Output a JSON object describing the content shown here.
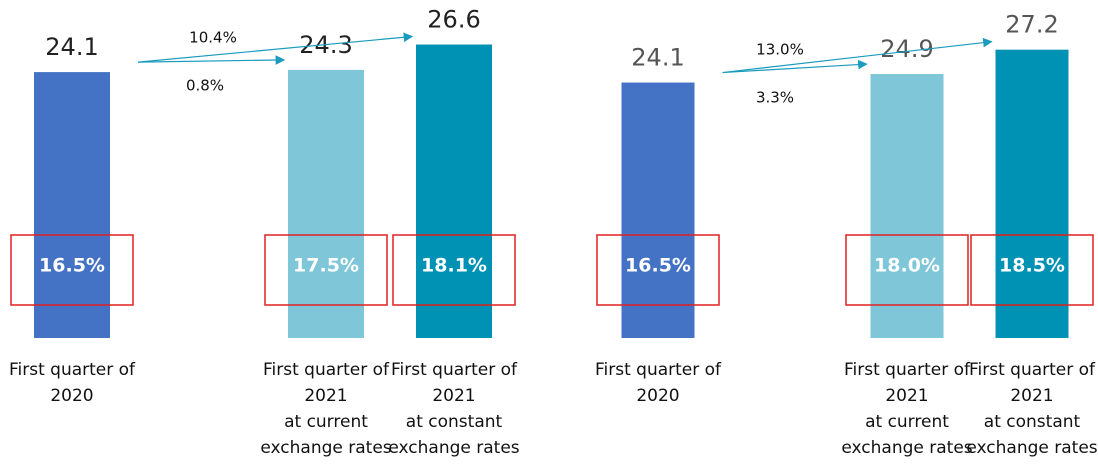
{
  "chart_data": [
    {
      "type": "bar",
      "categories": [
        [
          "First quarter of",
          "2020"
        ],
        [
          "First quarter of",
          "2021",
          "at current",
          "exchange rates"
        ],
        [
          "First quarter of",
          "2021",
          "at constant",
          "exchange rates"
        ]
      ],
      "values": [
        24.1,
        24.3,
        26.6
      ],
      "colors": [
        "#4472c4",
        "#7fc6d9",
        "#0092b4"
      ],
      "margin_labels": [
        "16.5%",
        "17.5%",
        "18.1%"
      ],
      "annotations": [
        "10.4%",
        "0.8%"
      ],
      "ylim": [
        0,
        30
      ]
    },
    {
      "type": "bar",
      "categories": [
        [
          "First quarter of",
          "2020"
        ],
        [
          "First quarter of",
          "2021",
          "at current",
          "exchange rates"
        ],
        [
          "First quarter of",
          "2021",
          "at constant",
          "exchange rates"
        ]
      ],
      "values": [
        24.1,
        24.9,
        27.2
      ],
      "colors": [
        "#4472c4",
        "#7fc6d9",
        "#0092b4"
      ],
      "margin_labels": [
        "16.5%",
        "18.0%",
        "18.5%"
      ],
      "annotations": [
        "13.0%",
        "3.3%"
      ],
      "ylim": [
        0,
        30
      ]
    }
  ]
}
